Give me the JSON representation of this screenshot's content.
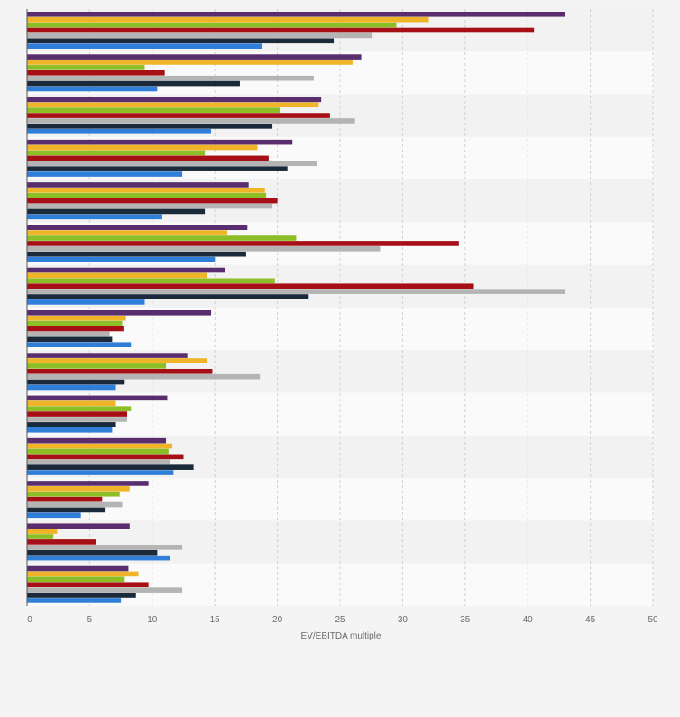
{
  "chart_data": {
    "type": "bar",
    "orientation": "horizontal",
    "title": "",
    "xlabel": "EV/EBITDA multiple",
    "ylabel": "",
    "xlim": [
      0,
      50
    ],
    "x_ticks": [
      0,
      5,
      10,
      15,
      20,
      25,
      30,
      35,
      40,
      45,
      50
    ],
    "x_tick_labels": [
      "0",
      "5",
      "10",
      "15",
      "20",
      "25",
      "30",
      "35",
      "40",
      "45",
      "50"
    ],
    "grid": "vertical dashed",
    "legend": "none",
    "categories": [
      "",
      "",
      "",
      "",
      "",
      "",
      "",
      "",
      "",
      "",
      "",
      "",
      "",
      ""
    ],
    "series": [
      {
        "color": "#5a2d6e",
        "values": [
          43.0,
          26.7,
          23.5,
          21.2,
          17.7,
          17.6,
          15.8,
          14.7,
          12.8,
          11.2,
          11.1,
          9.7,
          8.2,
          8.1
        ]
      },
      {
        "color": "#f0b429",
        "values": [
          32.1,
          26.0,
          23.3,
          18.4,
          19.0,
          16.0,
          14.4,
          7.9,
          14.4,
          7.1,
          11.6,
          8.2,
          2.4,
          8.9
        ]
      },
      {
        "color": "#8cbf26",
        "values": [
          29.5,
          9.4,
          20.2,
          14.2,
          19.1,
          21.5,
          19.8,
          7.6,
          11.1,
          8.3,
          11.3,
          7.4,
          2.1,
          7.8
        ]
      },
      {
        "color": "#a50f15",
        "values": [
          40.5,
          11.0,
          24.2,
          19.3,
          20.0,
          34.5,
          35.7,
          7.7,
          14.8,
          8.0,
          12.5,
          6.0,
          5.5,
          9.7
        ]
      },
      {
        "color": "#b4b4b4",
        "values": [
          27.6,
          22.9,
          26.2,
          23.2,
          19.6,
          28.2,
          43.0,
          6.6,
          18.6,
          8.0,
          11.4,
          7.6,
          12.4,
          12.4
        ]
      },
      {
        "color": "#1b2a3a",
        "values": [
          24.5,
          17.0,
          19.6,
          20.8,
          14.2,
          17.5,
          22.5,
          6.8,
          7.8,
          7.1,
          13.3,
          6.2,
          10.4,
          8.7
        ]
      },
      {
        "color": "#2f7ed8",
        "values": [
          18.8,
          10.4,
          14.7,
          12.4,
          10.8,
          15.0,
          9.4,
          8.3,
          7.1,
          6.8,
          11.7,
          4.3,
          11.4,
          7.5
        ]
      }
    ]
  }
}
